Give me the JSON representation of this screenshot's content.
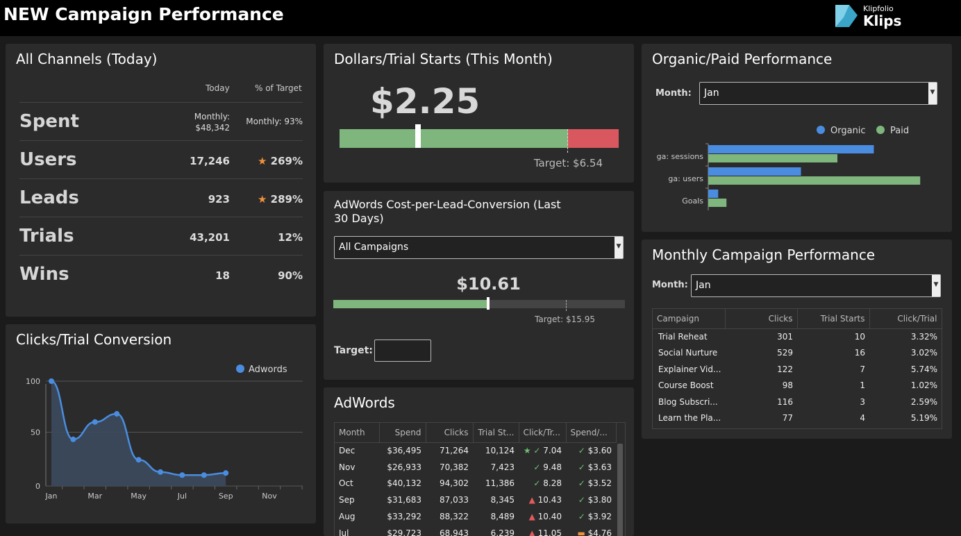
{
  "header": {
    "title": "NEW Campaign Performance",
    "logo_small": "Klipfolio",
    "logo_big": "Klips"
  },
  "colors": {
    "green": "#7fb67d",
    "red": "#d9575f",
    "blue": "#4a8de0",
    "panel": "#2b2b2b"
  },
  "channels": {
    "title": "All Channels (Today)",
    "col_today": "Today",
    "col_pct": "% of Target",
    "rows": [
      {
        "name": "Spent",
        "today": "Monthly: $48,342",
        "today_line1": "Monthly:",
        "today_line2": "$48,342",
        "pct": "Monthly: 93%",
        "star": false
      },
      {
        "name": "Users",
        "today": "17,246",
        "pct": "269%",
        "star": true
      },
      {
        "name": "Leads",
        "today": "923",
        "pct": "289%",
        "star": true
      },
      {
        "name": "Trials",
        "today": "43,201",
        "pct": "12%",
        "star": false
      },
      {
        "name": "Wins",
        "today": "18",
        "pct": "90%",
        "star": false
      }
    ]
  },
  "dollars_trial": {
    "title": "Dollars/Trial Starts (This Month)",
    "value": "$2.25",
    "target": "Target: $6.54",
    "value_num": 2.25,
    "target_num": 6.54
  },
  "cpl": {
    "title": "AdWords Cost-per-Lead-Conversion (Last 30 Days)",
    "title_line1": "AdWords Cost-per-Lead-Conversion (Last",
    "title_line2": "30 Days)",
    "select_value": "All Campaigns",
    "value": "$10.61",
    "target": "Target: $15.95",
    "target_label": "Target:",
    "value_num": 10.61,
    "target_num": 15.95
  },
  "organic_paid": {
    "title": "Organic/Paid Performance",
    "month_label": "Month:",
    "month_value": "Jan"
  },
  "monthly": {
    "title": "Monthly Campaign Performance",
    "month_label": "Month:",
    "month_value": "Jan",
    "headers": [
      "Campaign",
      "Clicks",
      "Trial Starts",
      "Click/Trial"
    ],
    "rows": [
      [
        "Trial Reheat",
        "301",
        "10",
        "3.32%"
      ],
      [
        "Social Nurture",
        "529",
        "16",
        "3.02%"
      ],
      [
        "Explainer Vid...",
        "122",
        "7",
        "5.74%"
      ],
      [
        "Course Boost",
        "98",
        "1",
        "1.02%"
      ],
      [
        "Blog Subscri...",
        "116",
        "3",
        "2.59%"
      ],
      [
        "Learn the Pla...",
        "77",
        "4",
        "5.19%"
      ]
    ]
  },
  "clicks_trial": {
    "title": "Clicks/Trial Conversion"
  },
  "adwords": {
    "title": "AdWords",
    "headers": [
      "Month",
      "Spend",
      "Clicks",
      "Trial St...",
      "Click/Tr...",
      "Spend/..."
    ],
    "rows": [
      {
        "month": "Dec",
        "spend": "$36,495",
        "clicks": "71,264",
        "trials": "10,124",
        "ct": "7.04",
        "ct_icon": "star-check",
        "sp": "$3.60",
        "sp_icon": "check"
      },
      {
        "month": "Nov",
        "spend": "$26,933",
        "clicks": "70,382",
        "trials": "7,423",
        "ct": "9.48",
        "ct_icon": "check",
        "sp": "$3.63",
        "sp_icon": "check"
      },
      {
        "month": "Oct",
        "spend": "$40,132",
        "clicks": "94,302",
        "trials": "11,386",
        "ct": "8.28",
        "ct_icon": "check",
        "sp": "$3.52",
        "sp_icon": "check"
      },
      {
        "month": "Sep",
        "spend": "$31,683",
        "clicks": "87,033",
        "trials": "8,345",
        "ct": "10.43",
        "ct_icon": "warning",
        "sp": "$3.80",
        "sp_icon": "check"
      },
      {
        "month": "Aug",
        "spend": "$33,292",
        "clicks": "88,322",
        "trials": "8,489",
        "ct": "10.40",
        "ct_icon": "warning",
        "sp": "$3.92",
        "sp_icon": "check"
      },
      {
        "month": "Jul",
        "spend": "$29,723",
        "clicks": "68,943",
        "trials": "6,239",
        "ct": "11.05",
        "ct_icon": "warning",
        "sp": "$4.76",
        "sp_icon": "dash"
      }
    ]
  },
  "chart_data": [
    {
      "type": "bar",
      "orientation": "horizontal",
      "categories": [
        "ga: sessions",
        "ga: users",
        "Goals"
      ],
      "series": [
        {
          "name": "Organic",
          "values": [
            100,
            56,
            6
          ],
          "color": "#4a8de0"
        },
        {
          "name": "Paid",
          "values": [
            78,
            128,
            11
          ],
          "color": "#7fb67d"
        }
      ],
      "legend": "top-right",
      "xlim": [
        0,
        130
      ]
    },
    {
      "type": "area",
      "x": [
        "Jan",
        "Feb",
        "Mar",
        "Apr",
        "May",
        "Jun",
        "Jul",
        "Aug",
        "Sep"
      ],
      "x_ticks": [
        "Jan",
        "Mar",
        "May",
        "Jul",
        "Sep",
        "Nov"
      ],
      "series": [
        {
          "name": "Adwords",
          "values": [
            100,
            43,
            60,
            68,
            23,
            11,
            8,
            8,
            10
          ],
          "color": "#4a8de0"
        }
      ],
      "ylim": [
        0,
        100
      ],
      "y_ticks": [
        0,
        50,
        100
      ],
      "legend": "top-right",
      "grid": true
    }
  ]
}
